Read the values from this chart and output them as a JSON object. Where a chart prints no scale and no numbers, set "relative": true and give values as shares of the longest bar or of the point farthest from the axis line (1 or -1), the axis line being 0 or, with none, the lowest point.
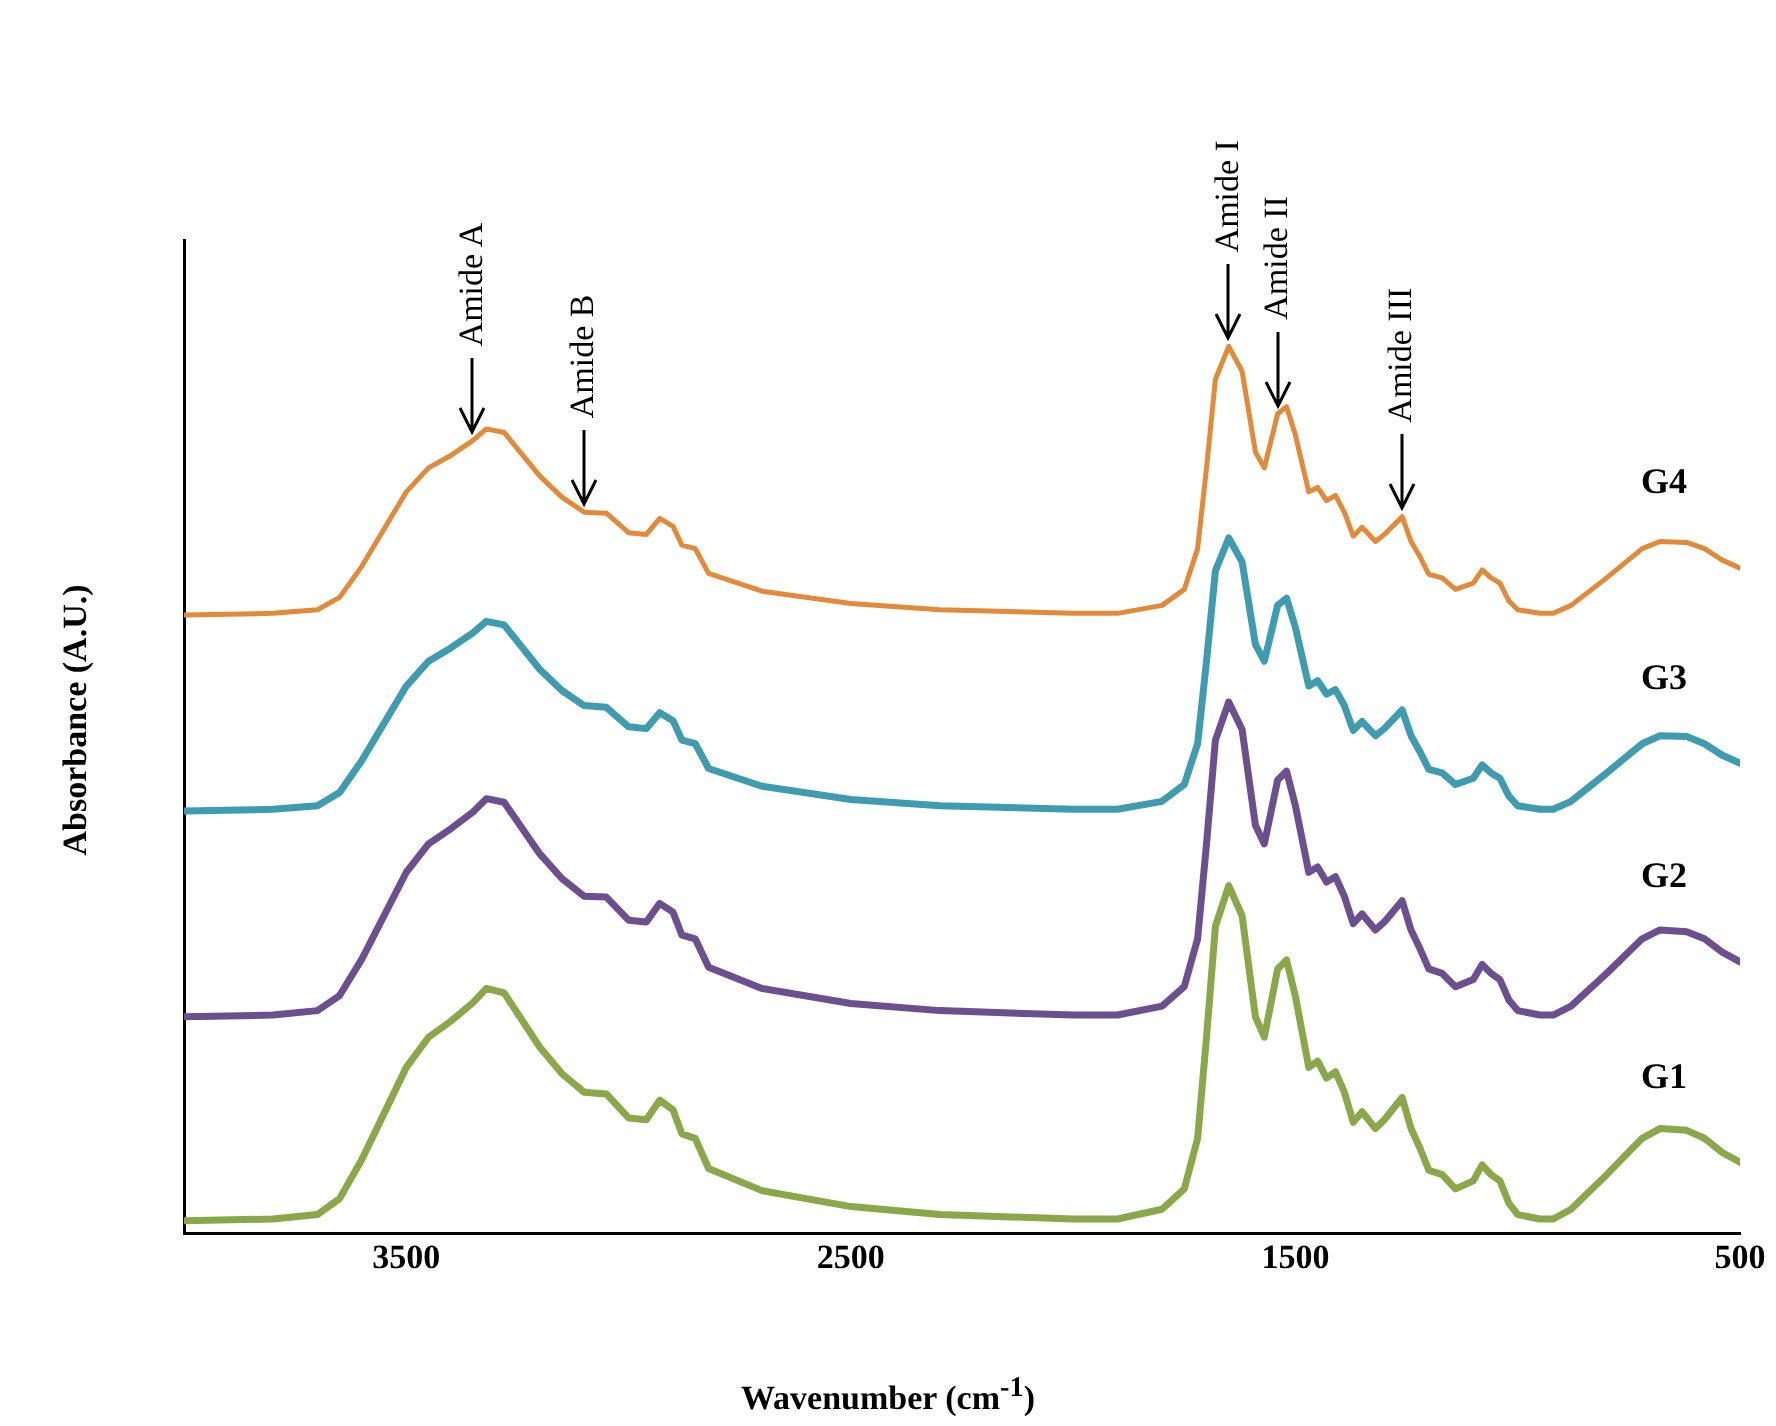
{
  "chart_data": {
    "type": "line",
    "relative": true,
    "xlabel": "Wavenumber (cm$^{-1}$)",
    "ylabel": "Absorbance (A.U.)",
    "xlim": [
      4000,
      500
    ],
    "xticks": [
      3500,
      2500,
      1500,
      500
    ],
    "grid": false,
    "legend": false,
    "marker": "none",
    "line_style": "solid",
    "x": [
      4000,
      3800,
      3700,
      3650,
      3600,
      3500,
      3450,
      3400,
      3350,
      3320,
      3280,
      3200,
      3150,
      3100,
      3050,
      3000,
      2960,
      2930,
      2900,
      2880,
      2850,
      2820,
      2700,
      2500,
      2300,
      2000,
      1900,
      1800,
      1750,
      1720,
      1700,
      1680,
      1650,
      1620,
      1590,
      1570,
      1540,
      1520,
      1500,
      1470,
      1450,
      1430,
      1410,
      1390,
      1370,
      1350,
      1320,
      1300,
      1260,
      1240,
      1220,
      1200,
      1170,
      1140,
      1100,
      1080,
      1060,
      1040,
      1020,
      1000,
      950,
      920,
      880,
      800,
      720,
      680,
      620,
      580,
      540,
      500
    ],
    "series": [
      {
        "name": "G1",
        "color": "#8aa84a",
        "values": [
          0.014,
          0.016,
          0.021,
          0.039,
          0.083,
          0.187,
          0.221,
          0.239,
          0.26,
          0.276,
          0.271,
          0.21,
          0.18,
          0.159,
          0.157,
          0.13,
          0.128,
          0.15,
          0.139,
          0.112,
          0.107,
          0.073,
          0.048,
          0.03,
          0.021,
          0.016,
          0.016,
          0.027,
          0.05,
          0.107,
          0.221,
          0.346,
          0.392,
          0.358,
          0.244,
          0.221,
          0.298,
          0.308,
          0.267,
          0.187,
          0.194,
          0.175,
          0.182,
          0.159,
          0.125,
          0.137,
          0.118,
          0.128,
          0.153,
          0.118,
          0.096,
          0.071,
          0.066,
          0.05,
          0.059,
          0.077,
          0.066,
          0.059,
          0.034,
          0.021,
          0.016,
          0.016,
          0.027,
          0.066,
          0.107,
          0.118,
          0.116,
          0.107,
          0.091,
          0.08
        ]
      },
      {
        "name": "G2",
        "color": "#6b4f8e",
        "values": [
          0.244,
          0.246,
          0.251,
          0.268,
          0.309,
          0.407,
          0.439,
          0.456,
          0.475,
          0.49,
          0.486,
          0.428,
          0.4,
          0.38,
          0.379,
          0.353,
          0.351,
          0.372,
          0.362,
          0.336,
          0.332,
          0.3,
          0.276,
          0.259,
          0.251,
          0.246,
          0.246,
          0.256,
          0.278,
          0.332,
          0.439,
          0.556,
          0.599,
          0.568,
          0.46,
          0.439,
          0.511,
          0.521,
          0.482,
          0.407,
          0.413,
          0.396,
          0.402,
          0.38,
          0.349,
          0.36,
          0.342,
          0.351,
          0.375,
          0.342,
          0.321,
          0.298,
          0.293,
          0.278,
          0.286,
          0.303,
          0.293,
          0.286,
          0.263,
          0.251,
          0.246,
          0.246,
          0.256,
          0.293,
          0.332,
          0.342,
          0.34,
          0.332,
          0.317,
          0.306
        ]
      },
      {
        "name": "G3",
        "color": "#3e9bb0",
        "values": [
          0.476,
          0.478,
          0.482,
          0.497,
          0.533,
          0.617,
          0.645,
          0.66,
          0.677,
          0.69,
          0.686,
          0.636,
          0.612,
          0.595,
          0.593,
          0.571,
          0.569,
          0.587,
          0.578,
          0.556,
          0.552,
          0.524,
          0.504,
          0.489,
          0.482,
          0.478,
          0.478,
          0.487,
          0.506,
          0.552,
          0.645,
          0.747,
          0.784,
          0.757,
          0.664,
          0.645,
          0.708,
          0.716,
          0.683,
          0.617,
          0.623,
          0.608,
          0.613,
          0.595,
          0.567,
          0.577,
          0.561,
          0.569,
          0.59,
          0.561,
          0.543,
          0.523,
          0.519,
          0.506,
          0.513,
          0.528,
          0.519,
          0.513,
          0.493,
          0.482,
          0.478,
          0.478,
          0.487,
          0.519,
          0.552,
          0.561,
          0.56,
          0.552,
          0.539,
          0.53
        ]
      },
      {
        "name": "G4",
        "color": "#e3893a",
        "values": [
          0.697,
          0.699,
          0.703,
          0.717,
          0.752,
          0.836,
          0.863,
          0.877,
          0.894,
          0.907,
          0.903,
          0.854,
          0.83,
          0.813,
          0.812,
          0.79,
          0.788,
          0.806,
          0.797,
          0.776,
          0.772,
          0.744,
          0.724,
          0.71,
          0.703,
          0.699,
          0.699,
          0.708,
          0.726,
          0.772,
          0.863,
          0.963,
          1.0,
          0.972,
          0.881,
          0.863,
          0.924,
          0.932,
          0.9,
          0.836,
          0.841,
          0.826,
          0.832,
          0.813,
          0.786,
          0.796,
          0.78,
          0.788,
          0.808,
          0.78,
          0.763,
          0.743,
          0.739,
          0.726,
          0.733,
          0.748,
          0.739,
          0.733,
          0.713,
          0.703,
          0.699,
          0.699,
          0.708,
          0.739,
          0.772,
          0.78,
          0.779,
          0.772,
          0.759,
          0.75
        ]
      }
    ],
    "annotations": [
      {
        "text": "Amide A",
        "x": 3350,
        "y": 0.894
      },
      {
        "text": "Amide B",
        "x": 3100,
        "y": 0.813
      },
      {
        "text": "Amide I",
        "x": 1650,
        "y": 1.0
      },
      {
        "text": "Amide II",
        "x": 1540,
        "y": 0.924
      },
      {
        "text": "Amide III",
        "x": 1260,
        "y": 0.808
      }
    ]
  }
}
